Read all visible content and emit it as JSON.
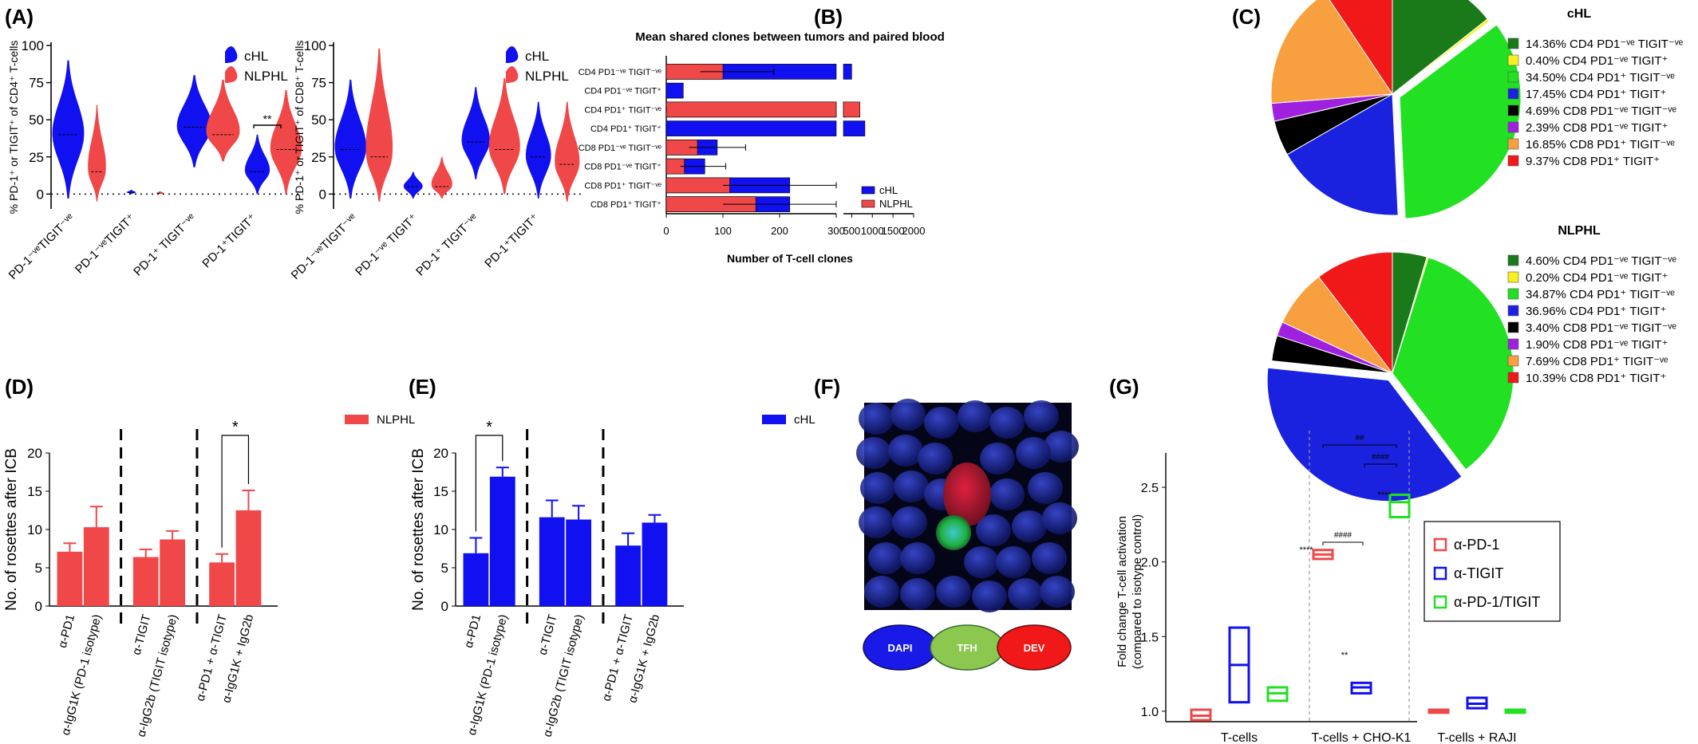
{
  "panels": {
    "A": "(A)",
    "B": "(B)",
    "C": "(C)",
    "D": "(D)",
    "E": "(E)",
    "F": "(F)",
    "G": "(G)"
  },
  "colors": {
    "cHL": "#1010f0",
    "NLPHL": "#f04848",
    "green": "#22e022"
  },
  "chart_data": [
    {
      "id": "A1",
      "type": "violin",
      "ylabel": "% PD-1⁺ or TIGIT⁺ of CD4⁺ T-cells",
      "ylim": [
        -10,
        100
      ],
      "yticks": [
        "0",
        "25",
        "50",
        "75",
        "100"
      ],
      "categories": [
        "PD-1⁻ᵛᵉTIGIT⁻ᵛᵉ",
        "PD-1⁻ᵛᵉTIGIT⁺",
        "PD-1⁺ TIGIT⁻ᵛᵉ",
        "PD-1⁺TIGIT⁺"
      ],
      "series": [
        {
          "name": "cHL",
          "medians": [
            40,
            1,
            45,
            15
          ]
        },
        {
          "name": "NLPHL",
          "medians": [
            15,
            0.5,
            40,
            30
          ]
        }
      ],
      "annotations": [
        "**"
      ]
    },
    {
      "id": "A2",
      "type": "violin",
      "ylabel": "% PD-1⁺ or TIGIT⁺ of CD8⁺ T-cells",
      "ylim": [
        -10,
        100
      ],
      "yticks": [
        "0",
        "25",
        "50",
        "75",
        "100"
      ],
      "categories": [
        "PD-1⁻ᵛᵉTIGIT⁻ᵛᵉ",
        "PD-1⁻ᵛᵉ TIGIT⁺",
        "PD-1⁺ TIGIT⁻ᵛᵉ",
        "PD-1⁺TIGIT⁺"
      ],
      "series": [
        {
          "name": "cHL",
          "medians": [
            30,
            5,
            35,
            25
          ]
        },
        {
          "name": "NLPHL",
          "medians": [
            25,
            5,
            30,
            20
          ]
        }
      ]
    },
    {
      "id": "B",
      "type": "bar",
      "orientation": "horizontal",
      "title": "Mean shared clones between tumors and paired blood",
      "xlabel": "Number of T-cell clones",
      "xticks_left": [
        "0",
        "100",
        "200",
        "300"
      ],
      "xticks_right": [
        "500",
        "1000",
        "1500",
        "2000"
      ],
      "categories": [
        "CD4 PD1⁻ᵛᵉ TIGIT⁻ᵛᵉ",
        "CD4 PD1⁻ᵛᵉ TIGIT⁺",
        "CD4 PD1⁺ TIGIT⁻ᵛᵉ",
        "CD4 PD1⁺ TIGIT⁺",
        "CD8 PD1⁻ᵛᵉ TIGIT⁻ᵛᵉ",
        "CD8 PD1⁻ᵛᵉ TIGIT⁺",
        "CD8 PD1⁺ TIGIT⁻ᵛᵉ",
        "CD8 PD1⁺ TIGIT⁺"
      ],
      "series": [
        {
          "name": "cHL",
          "values": [
            500,
            30,
            380,
            820,
            90,
            68,
            218,
            218
          ]
        },
        {
          "name": "NLPHL",
          "values": [
            100,
            0,
            700,
            0,
            55,
            32,
            112,
            158
          ]
        }
      ],
      "legend": [
        "cHL",
        "NLPHL"
      ]
    },
    {
      "id": "C1",
      "type": "pie",
      "title": "cHL",
      "labels": [
        "14.36%  CD4 PD1⁻ᵛᵉ TIGIT⁻ᵛᵉ",
        "0.40%  CD4 PD1⁻ᵛᵉ TIGIT⁺",
        "34.50%  CD4 PD1⁺ TIGIT⁻ᵛᵉ",
        "17.45%  CD4 PD1⁺ TIGIT⁺",
        "4.69%  CD8 PD1⁻ᵛᵉ TIGIT⁻ᵛᵉ",
        "2.39%  CD8 PD1⁻ᵛᵉ TIGIT⁺",
        "16.85%  CD8 PD1⁺ TIGIT⁻ᵛᵉ",
        "9.37%  CD8 PD1⁺ TIGIT⁺"
      ],
      "values": [
        14.36,
        0.4,
        34.5,
        17.45,
        4.69,
        2.39,
        16.85,
        9.37
      ],
      "colors": [
        "#1a7a1a",
        "#f8f020",
        "#22e022",
        "#1a22e0",
        "#000000",
        "#a020e0",
        "#f8a040",
        "#f01818"
      ]
    },
    {
      "id": "C2",
      "type": "pie",
      "title": "NLPHL",
      "labels": [
        "4.60%  CD4 PD1⁻ᵛᵉ TIGIT⁻ᵛᵉ",
        "0.20%  CD4 PD1⁻ᵛᵉ TIGIT⁺",
        "34.87%  CD4 PD1⁺ TIGIT⁻ᵛᵉ",
        "36.96%  CD4 PD1⁺ TIGIT⁺",
        "3.40%  CD8 PD1⁻ᵛᵉ TIGIT⁻ᵛᵉ",
        "1.90%  CD8 PD1⁻ᵛᵉ TIGIT⁺",
        "7.69%  CD8 PD1⁺ TIGIT⁻ᵛᵉ",
        "10.39%  CD8 PD1⁺ TIGIT⁺"
      ],
      "values": [
        4.6,
        0.2,
        34.87,
        36.96,
        3.4,
        1.9,
        7.69,
        10.39
      ],
      "colors": [
        "#1a7a1a",
        "#f8f020",
        "#22e022",
        "#1a22e0",
        "#000000",
        "#a020e0",
        "#f8a040",
        "#f01818"
      ]
    },
    {
      "id": "D",
      "type": "bar",
      "ylabel": "No. of rosettes after ICB",
      "ylim": [
        0,
        20
      ],
      "yticks": [
        "0",
        "5",
        "10",
        "15",
        "20"
      ],
      "categories": [
        "α-PD1",
        "α-IgG1K (PD-1 isotype)",
        "α-TIGIT",
        "α-IgG2b (TIGIT isotype)",
        "α-PD1 + α-TIGIT",
        "α-IgG1K + IgG2b"
      ],
      "values": [
        7.1,
        10.3,
        6.4,
        8.7,
        5.7,
        12.5
      ],
      "errors": [
        1.1,
        2.7,
        1.0,
        1.1,
        1.1,
        2.6
      ],
      "legend": [
        "NLPHL"
      ],
      "annotations": [
        "*"
      ]
    },
    {
      "id": "E",
      "type": "bar",
      "ylabel": "No. of rosettes after ICB",
      "ylim": [
        0,
        20
      ],
      "yticks": [
        "0",
        "5",
        "10",
        "15",
        "20"
      ],
      "categories": [
        "α-PD1",
        "α-IgG1K (PD-1 isotype)",
        "α-TIGIT",
        "α-IgG2b (TIGIT isotype)",
        "α-PD1 + α-TIGIT",
        "α-IgG1K + IgG2b"
      ],
      "values": [
        6.9,
        16.9,
        11.6,
        11.3,
        7.9,
        10.9
      ],
      "errors": [
        2.0,
        1.2,
        2.2,
        1.8,
        1.6,
        1.0
      ],
      "legend": [
        "cHL"
      ],
      "annotations": [
        "*"
      ]
    },
    {
      "id": "G",
      "type": "box",
      "ylabel": "Fold change T-cell activation (compared to isotype control)",
      "ylim": [
        0.93,
        2.65
      ],
      "yticks": [
        "1.0",
        "1.5",
        "2.0",
        "2.5"
      ],
      "categories": [
        "T-cells",
        "T-cells + CHO-K1",
        "T-cells + RAJI"
      ],
      "series": [
        {
          "name": "α-PD-1",
          "medians": [
            0.97,
            2.05,
            1.0
          ]
        },
        {
          "name": "α-TIGIT",
          "medians": [
            1.31,
            1.16,
            1.05
          ]
        },
        {
          "name": "α-PD-1/TIGIT",
          "medians": [
            1.12,
            2.4,
            1.0
          ]
        }
      ],
      "annotations": [
        "****",
        "**",
        "****",
        "####",
        "####",
        "##"
      ]
    }
  ],
  "panelF": {
    "labels": [
      "DAPI",
      "TFH",
      "DEV"
    ]
  }
}
